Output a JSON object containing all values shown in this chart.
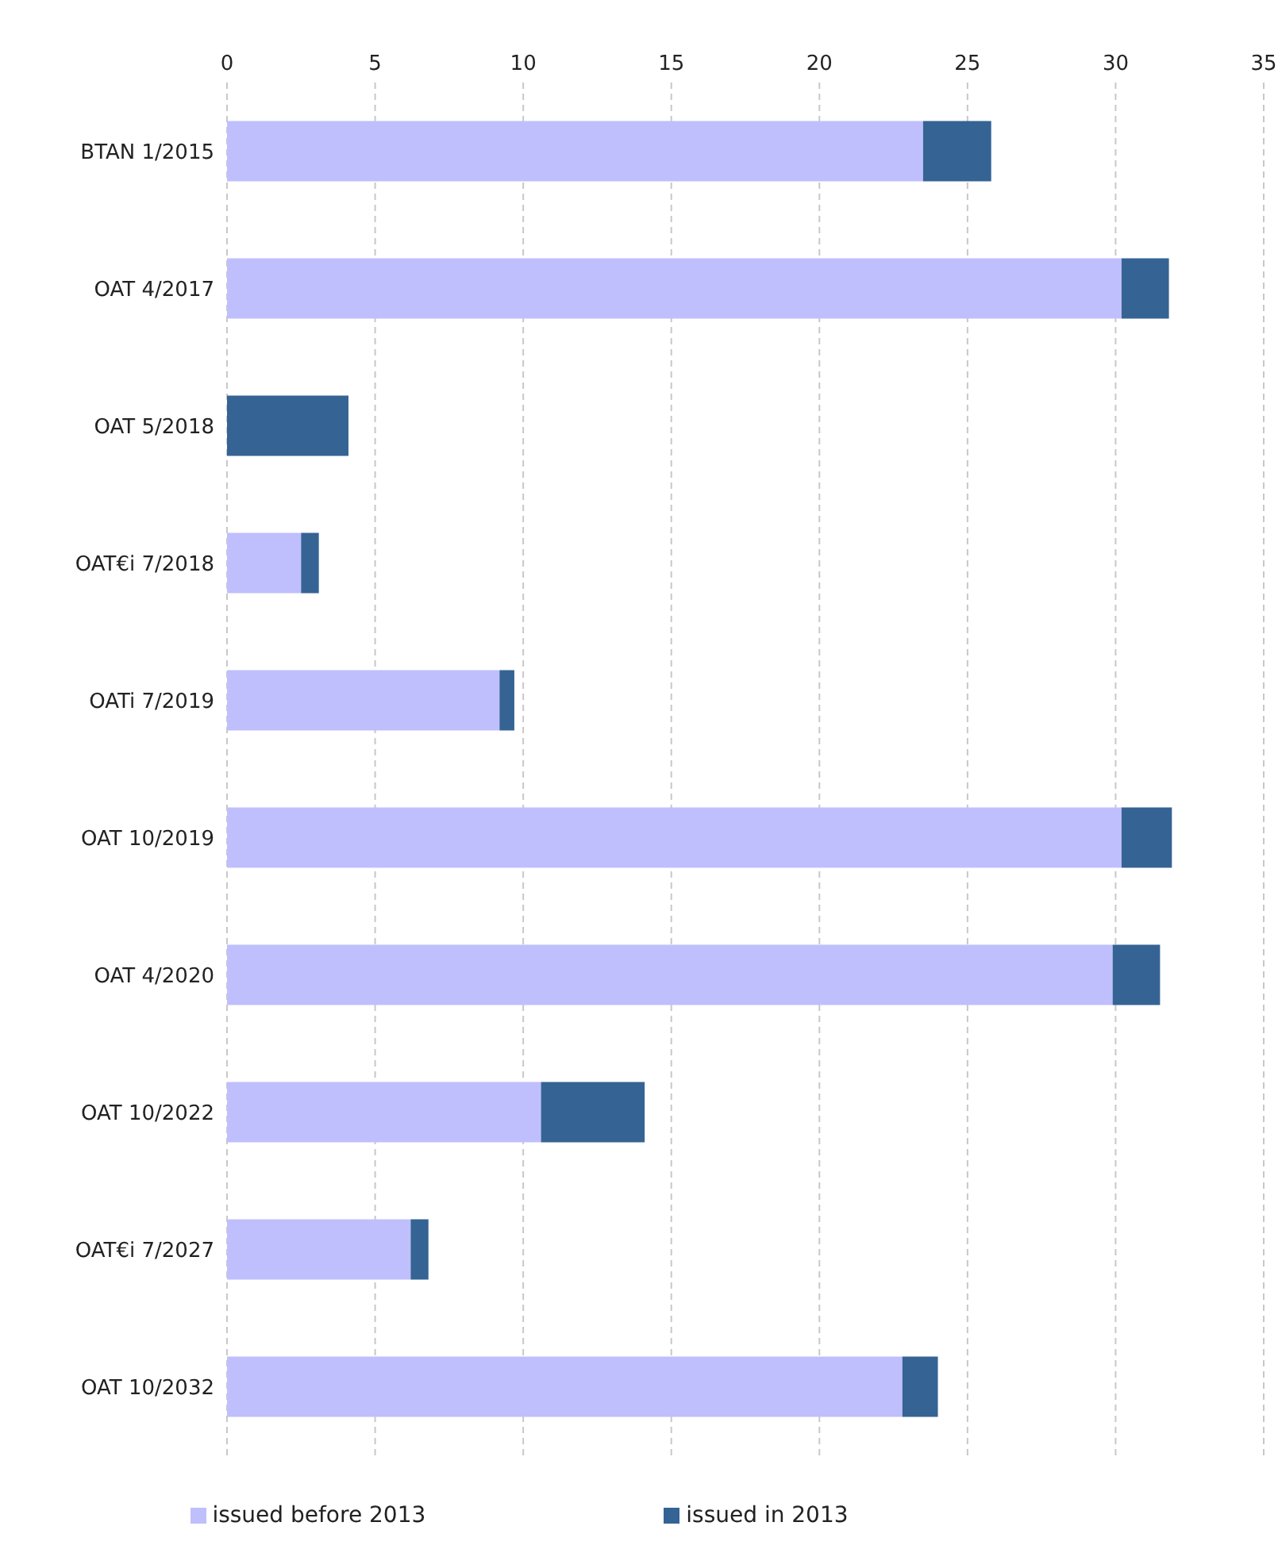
{
  "chart_data": {
    "type": "bar",
    "orientation": "horizontal",
    "stacked": true,
    "categories": [
      "BTAN 1/2015",
      "OAT 4/2017",
      "OAT 5/2018",
      "OAT€i 7/2018",
      "OATi 7/2019",
      "OAT 10/2019",
      "OAT 4/2020",
      "OAT 10/2022",
      "OAT€i 7/2027",
      "OAT 10/2032"
    ],
    "series": [
      {
        "name": "issued before 2013",
        "color": "#bfbffd",
        "values": [
          23.5,
          30.2,
          0,
          2.5,
          9.2,
          30.2,
          29.9,
          10.6,
          6.2,
          22.8
        ]
      },
      {
        "name": "issued in 2013",
        "color": "#356394",
        "values": [
          2.3,
          1.6,
          4.1,
          0.6,
          0.5,
          1.7,
          1.6,
          3.5,
          0.6,
          1.2
        ]
      }
    ],
    "xlim": [
      0,
      35
    ],
    "xticks": [
      0,
      5,
      10,
      15,
      20,
      25,
      30,
      35
    ],
    "grid": "x",
    "legend": "bottom"
  }
}
